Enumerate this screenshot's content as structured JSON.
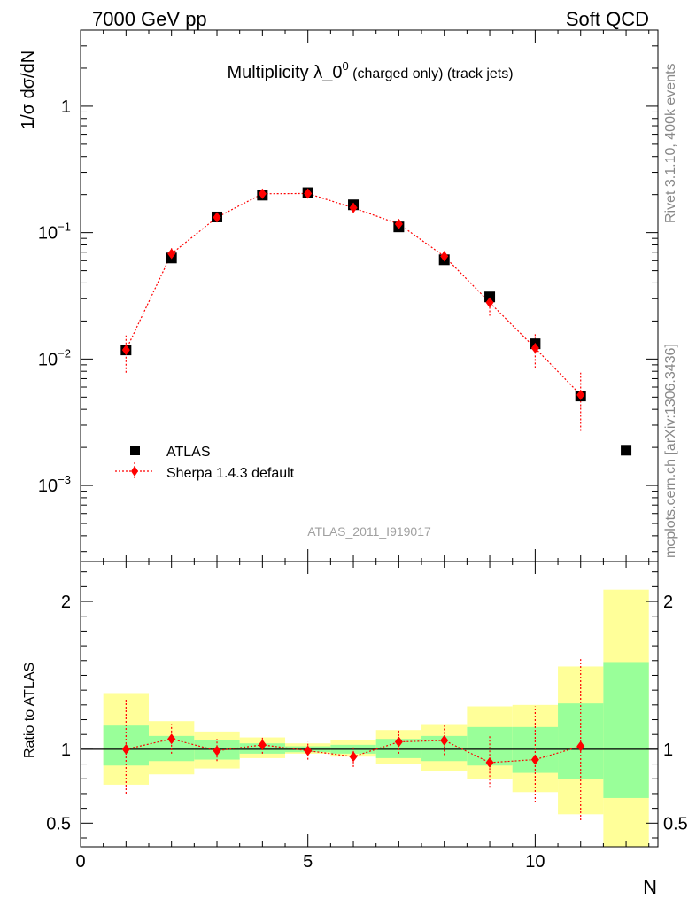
{
  "header": {
    "left": "7000 GeV pp",
    "right": "Soft QCD"
  },
  "side_labels": {
    "top": "Rivet 3.1.10,  400k events",
    "bottom": "mcplots.cern.ch [arXiv:1306.3436]"
  },
  "watermark": "ATLAS_2011_I919017",
  "chart_data": [
    {
      "type": "scatter",
      "title_main": "Multiplicity λ_0",
      "title_sup": "0",
      "title_small": " (charged only) (track jets)",
      "ylabel": "1/σ dσ/dN",
      "yscale": "log",
      "ylim": [
        0.00025,
        4
      ],
      "xlim": [
        0,
        12.7
      ],
      "yticks": [
        {
          "value": 0.001,
          "base": "10",
          "exp": "−3"
        },
        {
          "value": 0.01,
          "base": "10",
          "exp": "−2"
        },
        {
          "value": 0.1,
          "base": "10",
          "exp": "−1"
        },
        {
          "value": 1,
          "base": "1",
          "exp": ""
        }
      ],
      "legend": {
        "position": "middle-left",
        "entries": [
          "ATLAS",
          "Sherpa 1.4.3 default"
        ]
      },
      "series": [
        {
          "name": "ATLAS",
          "marker": "square",
          "color": "#000000",
          "x": [
            1,
            2,
            3,
            4,
            5,
            6,
            7,
            8,
            9,
            10,
            11,
            12
          ],
          "y": [
            0.0118,
            0.063,
            0.133,
            0.198,
            0.207,
            0.166,
            0.111,
            0.061,
            0.031,
            0.0132,
            0.0051,
            0.0019
          ]
        },
        {
          "name": "Sherpa 1.4.3 default",
          "marker": "diamond",
          "color": "#ff0000",
          "x": [
            1,
            2,
            3,
            4,
            5,
            6,
            7,
            8,
            9,
            10,
            11
          ],
          "y": [
            0.0118,
            0.068,
            0.132,
            0.203,
            0.204,
            0.157,
            0.117,
            0.065,
            0.028,
            0.0122,
            0.0052
          ],
          "err_low": [
            0.0078,
            0.06,
            0.121,
            0.191,
            0.193,
            0.146,
            0.106,
            0.057,
            0.022,
            0.0085,
            0.0027
          ],
          "err_high": [
            0.0158,
            0.077,
            0.143,
            0.214,
            0.215,
            0.168,
            0.128,
            0.073,
            0.034,
            0.0158,
            0.0078
          ]
        }
      ]
    },
    {
      "type": "scatter",
      "ylabel": "Ratio to ATLAS",
      "xlabel": "N",
      "ylim": [
        0.34,
        2.27
      ],
      "xlim": [
        0,
        12.7
      ],
      "xticks": [
        0,
        5,
        10
      ],
      "yticks": [
        0.5,
        1,
        2
      ],
      "reference": 1,
      "bands": [
        {
          "x0": 0.5,
          "x1": 1.5,
          "inner_low": 0.89,
          "inner_high": 1.16,
          "outer_low": 0.76,
          "outer_high": 1.38
        },
        {
          "x0": 1.5,
          "x1": 2.5,
          "inner_low": 0.92,
          "inner_high": 1.09,
          "outer_low": 0.83,
          "outer_high": 1.19
        },
        {
          "x0": 2.5,
          "x1": 3.5,
          "inner_low": 0.93,
          "inner_high": 1.06,
          "outer_low": 0.87,
          "outer_high": 1.12
        },
        {
          "x0": 3.5,
          "x1": 4.5,
          "inner_low": 0.97,
          "inner_high": 1.04,
          "outer_low": 0.94,
          "outer_high": 1.08
        },
        {
          "x0": 4.5,
          "x1": 5.5,
          "inner_low": 0.98,
          "inner_high": 1.02,
          "outer_low": 0.97,
          "outer_high": 1.04
        },
        {
          "x0": 5.5,
          "x1": 6.5,
          "inner_low": 0.97,
          "inner_high": 1.03,
          "outer_low": 0.95,
          "outer_high": 1.06
        },
        {
          "x0": 6.5,
          "x1": 7.5,
          "inner_low": 0.94,
          "inner_high": 1.07,
          "outer_low": 0.9,
          "outer_high": 1.13
        },
        {
          "x0": 7.5,
          "x1": 8.5,
          "inner_low": 0.92,
          "inner_high": 1.09,
          "outer_low": 0.85,
          "outer_high": 1.17
        },
        {
          "x0": 8.5,
          "x1": 9.5,
          "inner_low": 0.89,
          "inner_high": 1.15,
          "outer_low": 0.8,
          "outer_high": 1.29
        },
        {
          "x0": 9.5,
          "x1": 10.5,
          "inner_low": 0.84,
          "inner_high": 1.15,
          "outer_low": 0.71,
          "outer_high": 1.3
        },
        {
          "x0": 10.5,
          "x1": 11.5,
          "inner_low": 0.8,
          "inner_high": 1.31,
          "outer_low": 0.56,
          "outer_high": 1.56
        },
        {
          "x0": 11.5,
          "x1": 12.5,
          "inner_low": 0.67,
          "inner_high": 1.59,
          "outer_low": 0.34,
          "outer_high": 2.08
        }
      ],
      "series": [
        {
          "name": "Sherpa 1.4.3 default",
          "marker": "diamond",
          "color": "#ff0000",
          "x": [
            1,
            2,
            3,
            4,
            5,
            6,
            7,
            8,
            9,
            10,
            11
          ],
          "y": [
            1.0,
            1.07,
            0.99,
            1.03,
            0.99,
            0.95,
            1.05,
            1.06,
            0.91,
            0.93,
            1.02
          ],
          "err_low": [
            0.7,
            0.97,
            0.92,
            0.97,
            0.93,
            0.88,
            0.97,
            0.96,
            0.74,
            0.64,
            0.52
          ],
          "err_high": [
            1.34,
            1.17,
            1.07,
            1.08,
            1.05,
            1.02,
            1.13,
            1.16,
            1.1,
            1.29,
            1.61
          ]
        }
      ]
    }
  ],
  "colors": {
    "band_inner": "#99ff99",
    "band_outer": "#ffff99",
    "mc": "#ff0000",
    "data": "#000000"
  }
}
